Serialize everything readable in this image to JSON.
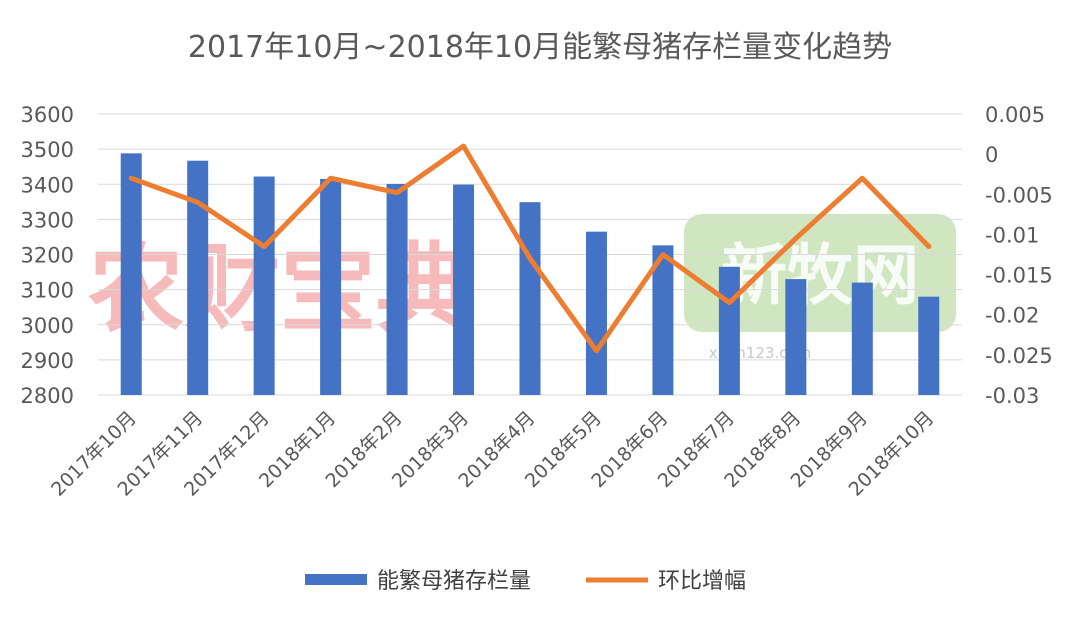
{
  "chart_data": {
    "type": "bar",
    "title": "2017年10月~2018年10月能繁母猪存栏量变化趋势",
    "categories": [
      "2017年10月",
      "2017年11月",
      "2017年12月",
      "2018年1月",
      "2018年2月",
      "2018年3月",
      "2018年4月",
      "2018年5月",
      "2018年6月",
      "2018年7月",
      "2018年8月",
      "2018年9月",
      "2018年10月"
    ],
    "series": [
      {
        "name": "能繁母猪存栏量",
        "type": "bar",
        "axis": "left",
        "color": "#4472C4",
        "values": [
          3488,
          3467,
          3422,
          3415,
          3401,
          3399,
          3349,
          3265,
          3226,
          3165,
          3130,
          3120,
          3080
        ]
      },
      {
        "name": "环比增幅",
        "type": "line",
        "axis": "right",
        "color": "#ED7D31",
        "values": [
          -0.003,
          -0.006,
          -0.0115,
          -0.003,
          -0.0048,
          0.001,
          -0.013,
          -0.0245,
          -0.0125,
          -0.0185,
          -0.0105,
          -0.003,
          -0.0115
        ]
      }
    ],
    "y_left": {
      "ylim": [
        2800,
        3600
      ],
      "ticks": [
        "2800",
        "2900",
        "3000",
        "3100",
        "3200",
        "3300",
        "3400",
        "3500",
        "3600"
      ]
    },
    "y_right": {
      "ylim": [
        -0.03,
        0.005
      ],
      "ticks": [
        "-0.03",
        "-0.025",
        "-0.02",
        "-0.015",
        "-0.01",
        "-0.005",
        "0",
        "0.005"
      ]
    },
    "grid": true,
    "legend_position": "bottom"
  },
  "watermarks": [
    {
      "text": "农财宝典",
      "color": "#F4A3A3"
    },
    {
      "text": "新牧网",
      "sub": "xinm123.com",
      "color": "#A9D18E"
    }
  ]
}
